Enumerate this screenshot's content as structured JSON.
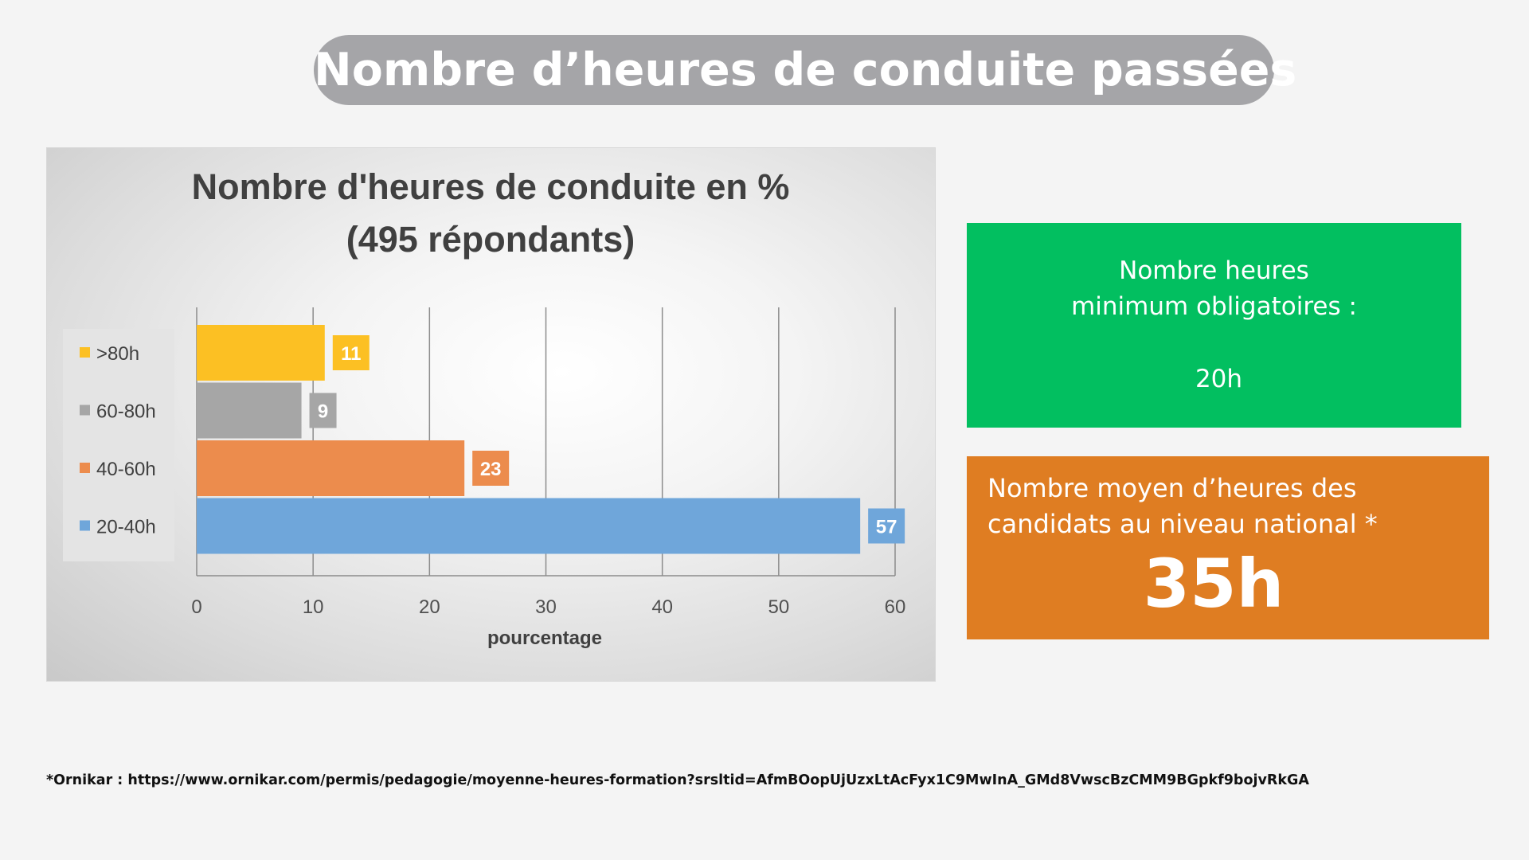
{
  "page": {
    "title": "Nombre d’heures de conduite passées"
  },
  "chart_data": {
    "type": "bar",
    "orientation": "horizontal",
    "title": "Nombre d'heures de conduite en %",
    "subtitle": "(495 répondants)",
    "xlabel": "pourcentage",
    "ylabel": "",
    "xlim": [
      0,
      60
    ],
    "xticks": [
      "0",
      "10",
      "20",
      "30",
      "40",
      "50",
      "60"
    ],
    "grid": true,
    "legend_position": "left",
    "categories": [
      ">80h",
      "60-80h",
      "40-60h",
      "20-40h"
    ],
    "values": [
      11,
      9,
      23,
      57
    ],
    "colors": [
      "#fcc023",
      "#a6a6a6",
      "#ec8c4d",
      "#6fa6da"
    ]
  },
  "info_min": {
    "line1": "Nombre heures",
    "line2": "minimum obligatoires :",
    "value": "20h",
    "color": "#02bf60"
  },
  "info_avg": {
    "line1": "Nombre moyen d’heures des",
    "line2": "candidats au niveau national *",
    "value": "35h",
    "color": "#df7d22"
  },
  "footnote": "*Ornikar : https://www.ornikar.com/permis/pedagogie/moyenne-heures-formation?srsltid=AfmBOopUjUzxLtAcFyx1C9MwInA_GMd8VwscBzCMM9BGpkf9bojvRkGA"
}
